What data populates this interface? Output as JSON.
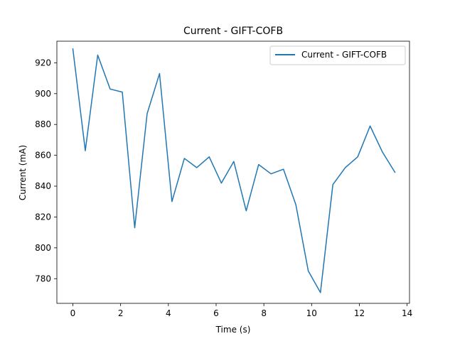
{
  "chart_data": {
    "type": "line",
    "title": "Current - GIFT-COFB",
    "xlabel": "Time (s)",
    "ylabel": "Current (mA)",
    "xlim": [
      -0.67,
      14.1
    ],
    "ylim": [
      764,
      934
    ],
    "xticks": [
      0,
      2,
      4,
      6,
      8,
      10,
      12,
      14
    ],
    "yticks": [
      780,
      800,
      820,
      840,
      860,
      880,
      900,
      920
    ],
    "grid": false,
    "legend_position": "top-right",
    "series": [
      {
        "name": "Current - GIFT-COFB",
        "color": "#1f77b4",
        "x": [
          0.0,
          0.52,
          1.04,
          1.56,
          2.07,
          2.59,
          3.11,
          3.63,
          4.15,
          4.67,
          5.19,
          5.71,
          6.22,
          6.74,
          7.26,
          7.78,
          8.3,
          8.82,
          9.34,
          9.86,
          10.37,
          10.89,
          11.41,
          11.93,
          12.45,
          12.97,
          13.49
        ],
        "y": [
          929,
          863,
          925,
          903,
          901,
          813,
          887,
          913,
          830,
          858,
          852,
          859,
          842,
          856,
          824,
          854,
          848,
          851,
          828,
          785,
          771,
          841,
          852,
          859,
          879,
          862,
          849
        ]
      }
    ]
  }
}
